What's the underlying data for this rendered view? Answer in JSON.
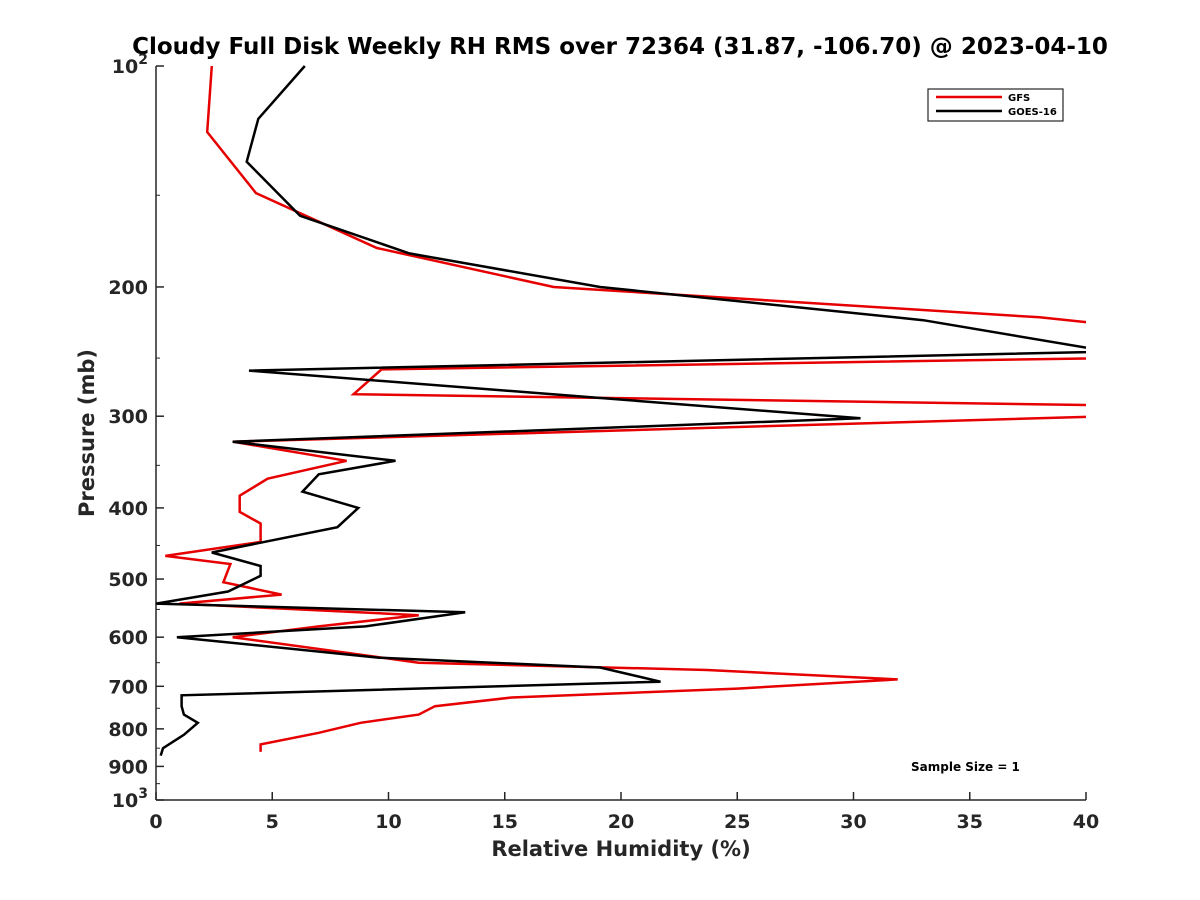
{
  "chart_data": {
    "type": "line",
    "title": "Cloudy Full Disk Weekly RH RMS over 72364 (31.87, -106.70) @ 2023-04-10",
    "xlabel": "Relative Humidity (%)",
    "ylabel": "Pressure (mb)",
    "xlim": [
      0,
      40
    ],
    "ylim": [
      100,
      1000
    ],
    "yscale": "log",
    "y_reversed": true,
    "grid": false,
    "legend_position": "top-right",
    "annotation": "Sample Size = 1",
    "x_ticks": [
      "0",
      "5",
      "10",
      "15",
      "20",
      "25",
      "30",
      "35",
      "40"
    ],
    "y_ticks": [
      {
        "value": 100,
        "base": "10",
        "exp": "2"
      },
      {
        "value": 200,
        "base": "200",
        "exp": ""
      },
      {
        "value": 300,
        "base": "300",
        "exp": ""
      },
      {
        "value": 400,
        "base": "400",
        "exp": ""
      },
      {
        "value": 500,
        "base": "500",
        "exp": ""
      },
      {
        "value": 600,
        "base": "600",
        "exp": ""
      },
      {
        "value": 700,
        "base": "700",
        "exp": ""
      },
      {
        "value": 800,
        "base": "800",
        "exp": ""
      },
      {
        "value": 900,
        "base": "900",
        "exp": ""
      },
      {
        "value": 1000,
        "base": "10",
        "exp": "3"
      }
    ],
    "y_minor_ticks": [
      150,
      250,
      350,
      450,
      550,
      650,
      750,
      850,
      950
    ],
    "series": [
      {
        "name": "GFS",
        "color": "#e60000",
        "x": [
          2.4,
          2.2,
          4.3,
          9.5,
          17.1,
          38.0,
          41.0,
          41.0,
          9.7,
          8.5,
          41.0,
          41.0,
          3.3,
          8.2,
          4.8,
          3.6,
          3.6,
          4.5,
          4.5,
          0.4,
          3.2,
          2.9,
          5.4,
          1.0,
          11.3,
          7.0,
          3.3,
          11.3,
          23.7,
          31.9,
          25.0,
          15.3,
          12.0,
          11.3,
          8.8,
          7.0,
          4.5,
          4.5
        ],
        "y": [
          100,
          123,
          149,
          177,
          200,
          220,
          225,
          250,
          259,
          280,
          290,
          300,
          325,
          345,
          365,
          385,
          405,
          420,
          445,
          465,
          477,
          505,
          525,
          540,
          560,
          580,
          600,
          650,
          665,
          685,
          705,
          725,
          745,
          765,
          785,
          810,
          840,
          860
        ]
      },
      {
        "name": "GOES-16",
        "color": "#000000",
        "x": [
          6.4,
          4.4,
          3.9,
          6.2,
          10.9,
          19.1,
          33.0,
          41.0,
          4.0,
          30.3,
          3.3,
          10.3,
          7.0,
          6.3,
          8.7,
          7.8,
          2.4,
          4.5,
          4.5,
          3.1,
          0.0,
          13.3,
          9.0,
          0.9,
          9.6,
          19.1,
          21.7,
          1.1,
          1.1,
          1.2,
          1.8,
          1.2,
          0.3,
          0.2
        ],
        "y": [
          100,
          118,
          135,
          160,
          180,
          200,
          222,
          245,
          260,
          302,
          325,
          345,
          360,
          380,
          400,
          425,
          460,
          480,
          495,
          520,
          540,
          555,
          580,
          600,
          640,
          660,
          690,
          720,
          745,
          765,
          785,
          815,
          850,
          870
        ]
      }
    ]
  }
}
